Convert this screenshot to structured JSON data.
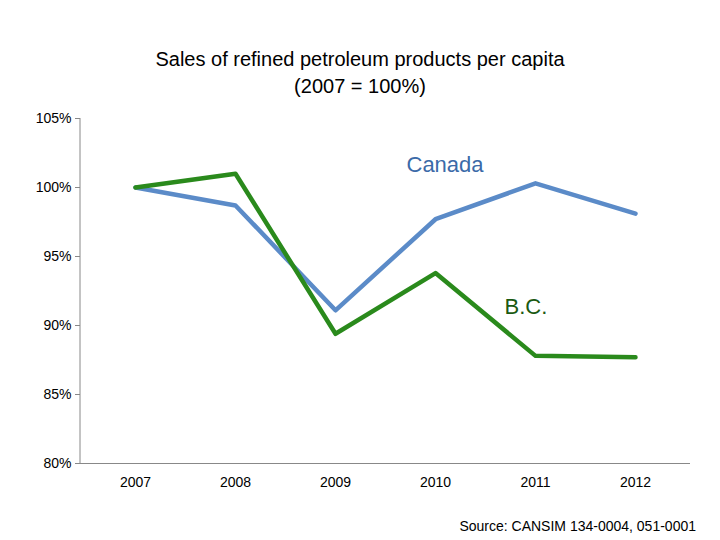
{
  "chart_data": {
    "type": "line",
    "title": "Sales of refined petroleum products per capita",
    "subtitle": "(2007 = 100%)",
    "caption": "Source: CANSIM 134-0004, 051-0001",
    "categories": [
      "2007",
      "2008",
      "2009",
      "2010",
      "2011",
      "2012"
    ],
    "series": [
      {
        "name": "Canada",
        "color": "#5b8bc8",
        "values": [
          100,
          98.7,
          91.1,
          97.7,
          100.3,
          98.1
        ]
      },
      {
        "name": "B.C.",
        "color": "#2a8a1c",
        "values": [
          100,
          101,
          89.4,
          93.8,
          87.8,
          87.7
        ]
      }
    ],
    "ylim": [
      80,
      105
    ],
    "yticks": [
      {
        "value": 80,
        "label": "80%"
      },
      {
        "value": 85,
        "label": "85%"
      },
      {
        "value": 90,
        "label": "90%"
      },
      {
        "value": 95,
        "label": "95%"
      },
      {
        "value": 100,
        "label": "100%"
      },
      {
        "value": 105,
        "label": "105%"
      }
    ],
    "grid": false
  }
}
